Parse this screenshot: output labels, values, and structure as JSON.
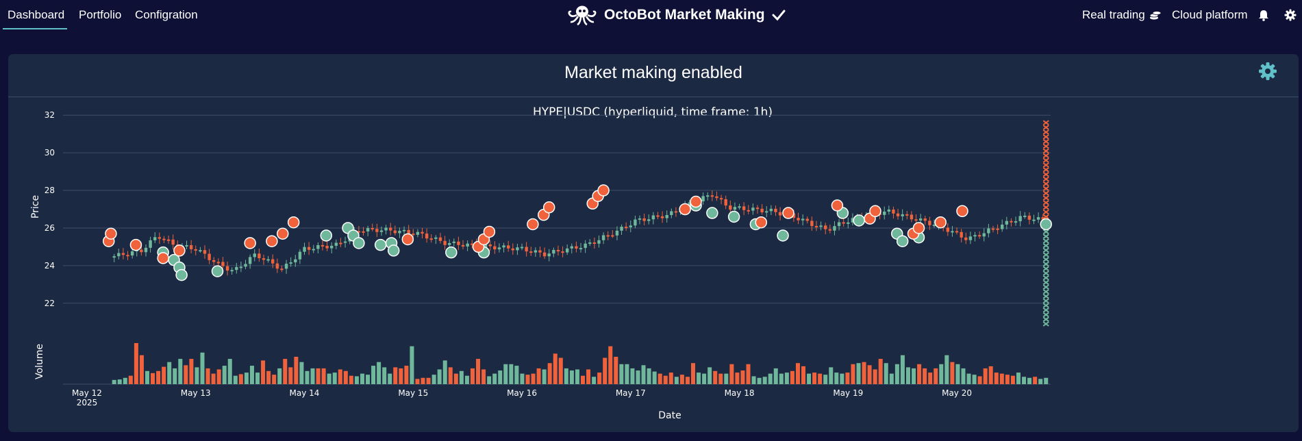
{
  "nav": {
    "items": [
      {
        "label": "Dashboard",
        "active": true
      },
      {
        "label": "Portfolio",
        "active": false
      },
      {
        "label": "Configration",
        "active": false
      }
    ],
    "brand_title": "OctoBot Market Making",
    "right": {
      "real_trading": "Real trading",
      "cloud_platform": "Cloud platform"
    },
    "icons": {
      "logo": "octopus-logo-icon",
      "check": "check-icon",
      "coins": "coins-icon",
      "bell": "bell-icon",
      "settings": "gear-icon"
    }
  },
  "panel": {
    "title": "Market making enabled",
    "settings_icon": "gear-icon"
  },
  "colors": {
    "accent": "#5fc0c9",
    "up": "#6fb89c",
    "down": "#f0623b",
    "background": "#0f1035",
    "panel": "#1c2942"
  },
  "chart_data": {
    "type": "candlestick",
    "title": "HYPE|USDC (hyperliquid, time frame: 1h)",
    "xlabel": "Date",
    "ylabel": "Price",
    "volume_label": "Volume",
    "x_ticks": [
      "May 12\n2025",
      "May 13",
      "May 14",
      "May 15",
      "May 16",
      "May 17",
      "May 18",
      "May 19",
      "May 20"
    ],
    "y_ticks": [
      22,
      24,
      26,
      28,
      30,
      32
    ],
    "ylim": [
      20.9,
      32.3
    ],
    "x_range_days": [
      0,
      8.85
    ],
    "grid": true,
    "close_anchors": [
      [
        0.25,
        24.5
      ],
      [
        0.5,
        24.8
      ],
      [
        0.65,
        25.6
      ],
      [
        0.8,
        25.1
      ],
      [
        1.0,
        24.9
      ],
      [
        1.2,
        24.1
      ],
      [
        1.35,
        23.7
      ],
      [
        1.55,
        24.6
      ],
      [
        1.8,
        23.8
      ],
      [
        2.0,
        24.9
      ],
      [
        2.3,
        25.1
      ],
      [
        2.5,
        25.9
      ],
      [
        2.75,
        25.9
      ],
      [
        3.05,
        25.7
      ],
      [
        3.3,
        25.2
      ],
      [
        3.7,
        25.0
      ],
      [
        4.0,
        24.9
      ],
      [
        4.2,
        24.6
      ],
      [
        4.6,
        25.1
      ],
      [
        4.9,
        25.9
      ],
      [
        5.05,
        26.4
      ],
      [
        5.35,
        26.7
      ],
      [
        5.55,
        27.3
      ],
      [
        5.75,
        27.8
      ],
      [
        5.9,
        27.1
      ],
      [
        6.1,
        27.0
      ],
      [
        6.3,
        26.9
      ],
      [
        6.5,
        26.6
      ],
      [
        6.8,
        25.9
      ],
      [
        7.0,
        26.4
      ],
      [
        7.35,
        26.9
      ],
      [
        7.55,
        26.6
      ],
      [
        7.85,
        26.1
      ],
      [
        8.1,
        25.4
      ],
      [
        8.35,
        26.0
      ],
      [
        8.6,
        26.6
      ],
      [
        8.82,
        26.4
      ]
    ],
    "volume_series": [
      0.08,
      0.09,
      0.12,
      0.16,
      0.78,
      0.55,
      0.25,
      0.21,
      0.25,
      0.33,
      0.42,
      0.3,
      0.48,
      0.36,
      0.48,
      0.32,
      0.6,
      0.3,
      0.2,
      0.28,
      0.35,
      0.48,
      0.16,
      0.19,
      0.22,
      0.35,
      0.22,
      0.45,
      0.25,
      0.18,
      0.3,
      0.48,
      0.32,
      0.52,
      0.42,
      0.25,
      0.3,
      0.3,
      0.3,
      0.2,
      0.22,
      0.28,
      0.25,
      0.16,
      0.15,
      0.2,
      0.18,
      0.35,
      0.42,
      0.32,
      0.2,
      0.32,
      0.3,
      0.35,
      0.72,
      0.1,
      0.12,
      0.12,
      0.18,
      0.28,
      0.45,
      0.32,
      0.2,
      0.25,
      0.16,
      0.3,
      0.48,
      0.28,
      0.15,
      0.2,
      0.26,
      0.38,
      0.38,
      0.35,
      0.2,
      0.18,
      0.2,
      0.3,
      0.28,
      0.4,
      0.58,
      0.5,
      0.3,
      0.26,
      0.28,
      0.16,
      0.28,
      0.14,
      0.22,
      0.5,
      0.72,
      0.52,
      0.38,
      0.38,
      0.3,
      0.26,
      0.36,
      0.3,
      0.24,
      0.2,
      0.16,
      0.22,
      0.14,
      0.18,
      0.14,
      0.4,
      0.22,
      0.2,
      0.32,
      0.25,
      0.2,
      0.2,
      0.38,
      0.22,
      0.26,
      0.38,
      0.15,
      0.12,
      0.14,
      0.2,
      0.3,
      0.2,
      0.22,
      0.25,
      0.4,
      0.34,
      0.2,
      0.22,
      0.2,
      0.18,
      0.32,
      0.22,
      0.2,
      0.22,
      0.38,
      0.4,
      0.42,
      0.36,
      0.28,
      0.48,
      0.4,
      0.2,
      0.38,
      0.55,
      0.32,
      0.3,
      0.38,
      0.3,
      0.22,
      0.3,
      0.38,
      0.55,
      0.42,
      0.38,
      0.3,
      0.2,
      0.18,
      0.15,
      0.3,
      0.34,
      0.22,
      0.2,
      0.18,
      0.16,
      0.22,
      0.14,
      0.12,
      0.14,
      0.1,
      0.12
    ],
    "volume_max_height": 60,
    "buy_trades": [
      [
        0.7,
        24.7
      ],
      [
        0.8,
        24.3
      ],
      [
        0.85,
        23.9
      ],
      [
        0.87,
        23.5
      ],
      [
        1.2,
        23.7
      ],
      [
        2.2,
        25.6
      ],
      [
        2.4,
        26.0
      ],
      [
        2.45,
        25.6
      ],
      [
        2.5,
        25.2
      ],
      [
        2.7,
        25.1
      ],
      [
        2.8,
        25.2
      ],
      [
        2.82,
        24.8
      ],
      [
        3.35,
        24.7
      ],
      [
        3.65,
        24.7
      ],
      [
        5.6,
        27.2
      ],
      [
        5.75,
        26.8
      ],
      [
        5.95,
        26.6
      ],
      [
        6.15,
        26.2
      ],
      [
        6.4,
        25.6
      ],
      [
        6.95,
        26.8
      ],
      [
        7.1,
        26.4
      ],
      [
        7.45,
        25.7
      ],
      [
        7.5,
        25.3
      ],
      [
        7.65,
        25.5
      ],
      [
        8.82,
        26.2
      ]
    ],
    "sell_trades": [
      [
        0.2,
        25.3
      ],
      [
        0.22,
        25.7
      ],
      [
        0.45,
        25.1
      ],
      [
        0.7,
        24.4
      ],
      [
        0.85,
        24.8
      ],
      [
        1.5,
        25.2
      ],
      [
        1.7,
        25.3
      ],
      [
        1.8,
        25.7
      ],
      [
        1.9,
        26.3
      ],
      [
        2.95,
        25.4
      ],
      [
        3.6,
        25.0
      ],
      [
        3.65,
        25.4
      ],
      [
        3.7,
        25.8
      ],
      [
        4.1,
        26.2
      ],
      [
        4.2,
        26.7
      ],
      [
        4.25,
        27.1
      ],
      [
        4.65,
        27.3
      ],
      [
        4.7,
        27.7
      ],
      [
        4.75,
        28.0
      ],
      [
        5.5,
        27.0
      ],
      [
        5.6,
        27.4
      ],
      [
        6.2,
        26.3
      ],
      [
        6.45,
        26.8
      ],
      [
        6.9,
        27.2
      ],
      [
        7.2,
        26.5
      ],
      [
        7.25,
        26.9
      ],
      [
        7.6,
        25.7
      ],
      [
        7.65,
        26.0
      ],
      [
        7.85,
        26.3
      ],
      [
        8.05,
        26.9
      ]
    ],
    "sell_orders": {
      "count": 21,
      "from": 26.6,
      "to": 31.6
    },
    "buy_orders": {
      "count": 21,
      "from": 25.8,
      "to": 20.9
    }
  }
}
